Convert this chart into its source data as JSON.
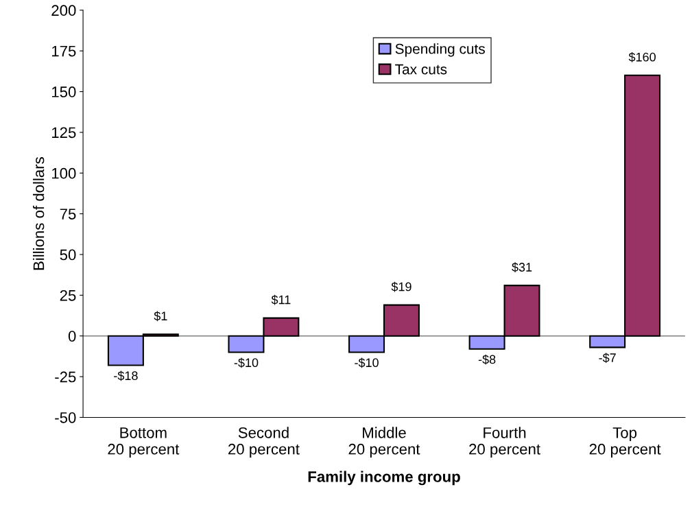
{
  "chart_data": {
    "type": "bar",
    "xlabel": "Family income group",
    "ylabel": "Billions of dollars",
    "categories": [
      "Bottom\n20 percent",
      "Second\n20 percent",
      "Middle\n20 percent",
      "Fourth\n20 percent",
      "Top\n20 percent"
    ],
    "series": [
      {
        "name": "Spending cuts",
        "color": "#9999ff",
        "values": [
          -18,
          -10,
          -10,
          -8,
          -7
        ],
        "value_labels": [
          "-$18",
          "-$10",
          "-$10",
          "-$8",
          "-$7"
        ]
      },
      {
        "name": "Tax cuts",
        "color": "#993366",
        "values": [
          1,
          11,
          19,
          31,
          160
        ],
        "value_labels": [
          "$1",
          "$11",
          "$19",
          "$31",
          "$160"
        ]
      }
    ],
    "ylim": [
      -50,
      200
    ],
    "yticks": [
      -50,
      -25,
      0,
      25,
      50,
      75,
      100,
      125,
      150,
      175,
      200
    ],
    "legend": "top"
  }
}
